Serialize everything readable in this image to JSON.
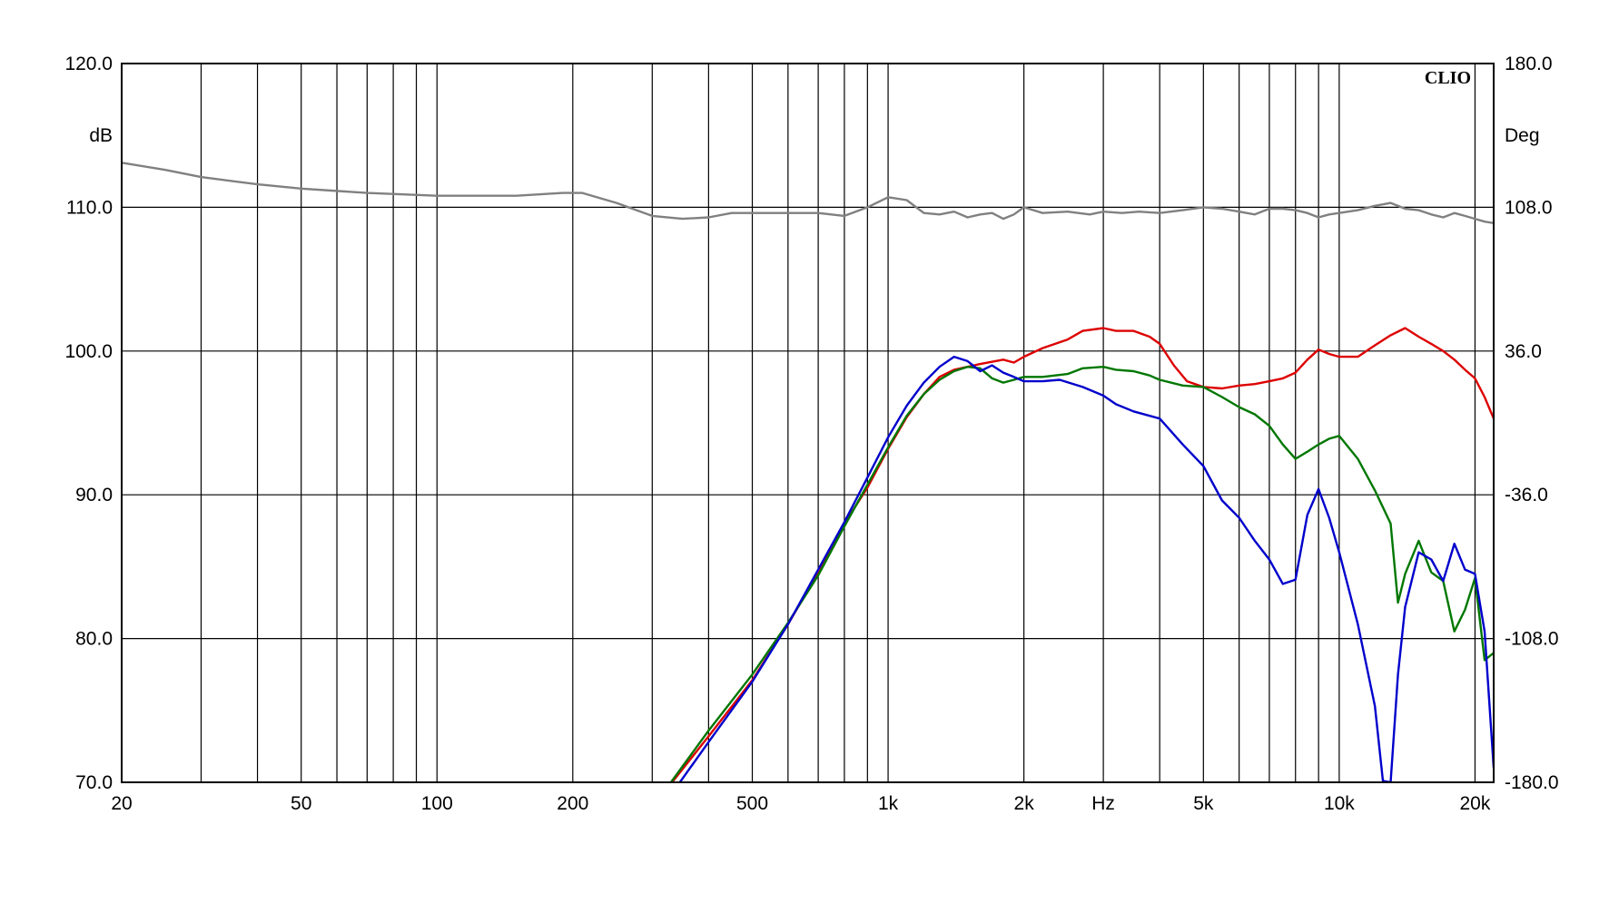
{
  "chart_data": {
    "type": "line",
    "brand": "CLIO",
    "xlabel": "Hz",
    "ylabel_left": "dB",
    "ylabel_right": "Deg",
    "xscale": "log",
    "xlim": [
      20,
      22000
    ],
    "ylim_left": [
      70,
      120
    ],
    "ylim_right": [
      -180,
      180
    ],
    "x_ticks": [
      {
        "v": 20,
        "label": "20"
      },
      {
        "v": 50,
        "label": "50"
      },
      {
        "v": 100,
        "label": "100"
      },
      {
        "v": 200,
        "label": "200"
      },
      {
        "v": 500,
        "label": "500"
      },
      {
        "v": 1000,
        "label": "1k"
      },
      {
        "v": 2000,
        "label": "2k"
      },
      {
        "v": 5000,
        "label": "5k"
      },
      {
        "v": 10000,
        "label": "10k"
      },
      {
        "v": 20000,
        "label": "20k"
      }
    ],
    "unit_tick_at": 3000,
    "y_left_ticks": [
      {
        "v": 120,
        "label": "120.0"
      },
      {
        "v": 110,
        "label": "110.0"
      },
      {
        "v": 100,
        "label": "100.0"
      },
      {
        "v": 90,
        "label": "90.0"
      },
      {
        "v": 80,
        "label": "80.0"
      },
      {
        "v": 70,
        "label": "70.0"
      }
    ],
    "y_right_ticks": [
      {
        "v": 180,
        "label": "180.0"
      },
      {
        "v": 108,
        "label": "108.0"
      },
      {
        "v": 36,
        "label": "36.0"
      },
      {
        "v": -36,
        "label": "-36.0"
      },
      {
        "v": -108,
        "label": "-108.0"
      },
      {
        "v": -180,
        "label": "-180.0"
      }
    ],
    "grid_x": [
      20,
      30,
      40,
      50,
      60,
      70,
      80,
      90,
      100,
      200,
      300,
      400,
      500,
      600,
      700,
      800,
      900,
      1000,
      2000,
      3000,
      4000,
      5000,
      6000,
      7000,
      8000,
      9000,
      10000,
      20000
    ],
    "grid": true,
    "series": [
      {
        "color": "#808080",
        "points": [
          [
            20,
            113.1
          ],
          [
            25,
            112.6
          ],
          [
            30,
            112.1
          ],
          [
            40,
            111.6
          ],
          [
            50,
            111.3
          ],
          [
            70,
            111.0
          ],
          [
            100,
            110.8
          ],
          [
            150,
            110.8
          ],
          [
            190,
            111.0
          ],
          [
            210,
            111.0
          ],
          [
            250,
            110.3
          ],
          [
            300,
            109.4
          ],
          [
            350,
            109.2
          ],
          [
            400,
            109.3
          ],
          [
            450,
            109.6
          ],
          [
            500,
            109.6
          ],
          [
            600,
            109.6
          ],
          [
            700,
            109.6
          ],
          [
            800,
            109.4
          ],
          [
            900,
            110.0
          ],
          [
            1000,
            110.7
          ],
          [
            1100,
            110.5
          ],
          [
            1200,
            109.6
          ],
          [
            1300,
            109.5
          ],
          [
            1400,
            109.7
          ],
          [
            1500,
            109.3
          ],
          [
            1600,
            109.5
          ],
          [
            1700,
            109.6
          ],
          [
            1800,
            109.2
          ],
          [
            1900,
            109.5
          ],
          [
            2000,
            110.0
          ],
          [
            2200,
            109.6
          ],
          [
            2500,
            109.7
          ],
          [
            2800,
            109.5
          ],
          [
            3000,
            109.7
          ],
          [
            3300,
            109.6
          ],
          [
            3600,
            109.7
          ],
          [
            4000,
            109.6
          ],
          [
            4500,
            109.8
          ],
          [
            5000,
            110.0
          ],
          [
            5500,
            109.9
          ],
          [
            6000,
            109.7
          ],
          [
            6500,
            109.5
          ],
          [
            7000,
            109.9
          ],
          [
            7500,
            109.9
          ],
          [
            8000,
            109.8
          ],
          [
            8500,
            109.6
          ],
          [
            9000,
            109.3
          ],
          [
            9500,
            109.5
          ],
          [
            10000,
            109.6
          ],
          [
            11000,
            109.8
          ],
          [
            12000,
            110.1
          ],
          [
            13000,
            110.3
          ],
          [
            14000,
            109.9
          ],
          [
            15000,
            109.8
          ],
          [
            16000,
            109.5
          ],
          [
            17000,
            109.3
          ],
          [
            18000,
            109.6
          ],
          [
            19000,
            109.4
          ],
          [
            20000,
            109.2
          ],
          [
            21000,
            109.0
          ],
          [
            22000,
            108.9
          ]
        ]
      },
      {
        "color": "#dd0000",
        "points": [
          [
            330,
            69.9
          ],
          [
            400,
            73.2
          ],
          [
            500,
            77.1
          ],
          [
            600,
            81.0
          ],
          [
            700,
            84.6
          ],
          [
            800,
            88.0
          ],
          [
            900,
            90.5
          ],
          [
            1000,
            93.2
          ],
          [
            1100,
            95.4
          ],
          [
            1200,
            97.0
          ],
          [
            1300,
            98.2
          ],
          [
            1400,
            98.7
          ],
          [
            1500,
            98.9
          ],
          [
            1600,
            99.1
          ],
          [
            1800,
            99.4
          ],
          [
            1900,
            99.2
          ],
          [
            2000,
            99.6
          ],
          [
            2200,
            100.2
          ],
          [
            2500,
            100.8
          ],
          [
            2700,
            101.4
          ],
          [
            3000,
            101.6
          ],
          [
            3200,
            101.4
          ],
          [
            3500,
            101.4
          ],
          [
            3800,
            101.0
          ],
          [
            4000,
            100.5
          ],
          [
            4300,
            99.0
          ],
          [
            4600,
            97.9
          ],
          [
            5000,
            97.5
          ],
          [
            5500,
            97.4
          ],
          [
            6000,
            97.6
          ],
          [
            6500,
            97.7
          ],
          [
            7000,
            97.9
          ],
          [
            7500,
            98.1
          ],
          [
            8000,
            98.5
          ],
          [
            8500,
            99.4
          ],
          [
            9000,
            100.1
          ],
          [
            9500,
            99.8
          ],
          [
            10000,
            99.6
          ],
          [
            11000,
            99.6
          ],
          [
            12000,
            100.4
          ],
          [
            13000,
            101.1
          ],
          [
            14000,
            101.6
          ],
          [
            15000,
            101.0
          ],
          [
            16000,
            100.5
          ],
          [
            17000,
            100.0
          ],
          [
            18000,
            99.4
          ],
          [
            19000,
            98.7
          ],
          [
            20000,
            98.1
          ],
          [
            21000,
            96.8
          ],
          [
            22000,
            95.3
          ]
        ]
      },
      {
        "color": "#007700",
        "points": [
          [
            330,
            70.0
          ],
          [
            400,
            73.6
          ],
          [
            500,
            77.5
          ],
          [
            600,
            81.1
          ],
          [
            700,
            84.4
          ],
          [
            800,
            87.8
          ],
          [
            900,
            90.7
          ],
          [
            1000,
            93.3
          ],
          [
            1100,
            95.5
          ],
          [
            1200,
            97.0
          ],
          [
            1300,
            98.0
          ],
          [
            1400,
            98.6
          ],
          [
            1500,
            98.9
          ],
          [
            1600,
            98.8
          ],
          [
            1700,
            98.1
          ],
          [
            1800,
            97.8
          ],
          [
            1900,
            98.0
          ],
          [
            2000,
            98.2
          ],
          [
            2200,
            98.2
          ],
          [
            2500,
            98.4
          ],
          [
            2700,
            98.8
          ],
          [
            3000,
            98.9
          ],
          [
            3200,
            98.7
          ],
          [
            3500,
            98.6
          ],
          [
            3800,
            98.3
          ],
          [
            4000,
            98.0
          ],
          [
            4500,
            97.6
          ],
          [
            5000,
            97.5
          ],
          [
            5500,
            96.8
          ],
          [
            6000,
            96.1
          ],
          [
            6500,
            95.6
          ],
          [
            7000,
            94.8
          ],
          [
            7500,
            93.5
          ],
          [
            8000,
            92.5
          ],
          [
            8500,
            93.0
          ],
          [
            9000,
            93.5
          ],
          [
            9500,
            93.9
          ],
          [
            10000,
            94.1
          ],
          [
            11000,
            92.5
          ],
          [
            12000,
            90.3
          ],
          [
            13000,
            88.0
          ],
          [
            13500,
            82.5
          ],
          [
            14000,
            84.5
          ],
          [
            15000,
            86.8
          ],
          [
            16000,
            84.6
          ],
          [
            17000,
            84.0
          ],
          [
            18000,
            80.5
          ],
          [
            19000,
            82.0
          ],
          [
            20000,
            84.2
          ],
          [
            21000,
            78.5
          ],
          [
            22000,
            79.0
          ]
        ]
      },
      {
        "color": "#0000cc",
        "points": [
          [
            340,
            69.7
          ],
          [
            400,
            72.8
          ],
          [
            500,
            77.0
          ],
          [
            600,
            81.0
          ],
          [
            700,
            84.8
          ],
          [
            800,
            88.1
          ],
          [
            900,
            91.2
          ],
          [
            1000,
            94.0
          ],
          [
            1100,
            96.2
          ],
          [
            1200,
            97.8
          ],
          [
            1300,
            98.9
          ],
          [
            1400,
            99.6
          ],
          [
            1500,
            99.3
          ],
          [
            1600,
            98.6
          ],
          [
            1700,
            99.0
          ],
          [
            1800,
            98.5
          ],
          [
            1900,
            98.2
          ],
          [
            2000,
            97.9
          ],
          [
            2200,
            97.9
          ],
          [
            2400,
            98.0
          ],
          [
            2700,
            97.5
          ],
          [
            3000,
            96.9
          ],
          [
            3200,
            96.3
          ],
          [
            3500,
            95.8
          ],
          [
            4000,
            95.3
          ],
          [
            4500,
            93.5
          ],
          [
            5000,
            92.0
          ],
          [
            5500,
            89.6
          ],
          [
            6000,
            88.4
          ],
          [
            6500,
            86.8
          ],
          [
            7000,
            85.5
          ],
          [
            7500,
            83.8
          ],
          [
            8000,
            84.1
          ],
          [
            8500,
            88.6
          ],
          [
            9000,
            90.4
          ],
          [
            9500,
            88.4
          ],
          [
            10000,
            86.0
          ],
          [
            11000,
            81.0
          ],
          [
            12000,
            75.3
          ],
          [
            12500,
            70.1
          ],
          [
            13000,
            70.0
          ],
          [
            13500,
            77.5
          ],
          [
            14000,
            82.2
          ],
          [
            15000,
            86.0
          ],
          [
            16000,
            85.5
          ],
          [
            17000,
            84.0
          ],
          [
            18000,
            86.6
          ],
          [
            19000,
            84.8
          ],
          [
            20000,
            84.5
          ],
          [
            21000,
            80.5
          ],
          [
            22000,
            71.0
          ]
        ]
      }
    ]
  }
}
